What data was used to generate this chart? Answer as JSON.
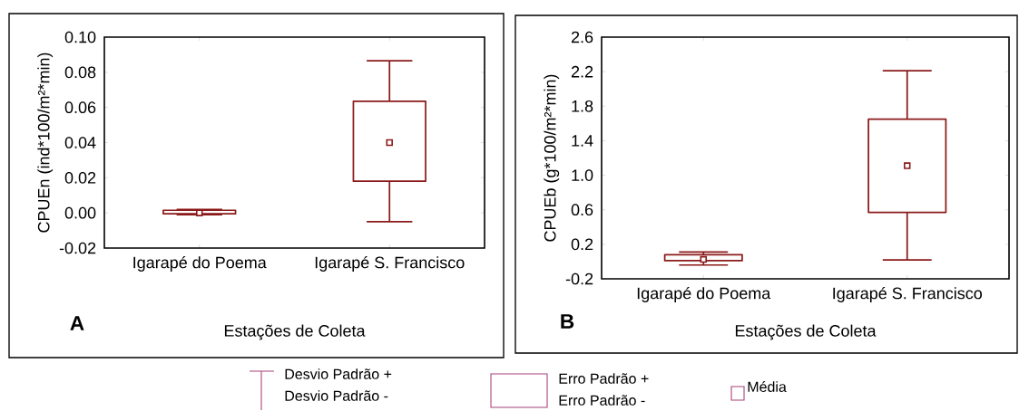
{
  "chart_data": [
    {
      "type": "box",
      "categories": [
        "Igarapé do Poema",
        "Igarapé S. Francisco"
      ],
      "color": "#8b1a1a",
      "boxes": [
        {
          "low": -0.001,
          "q1": -0.0005,
          "mean": 0.0,
          "q3": 0.0015,
          "high": 0.002
        },
        {
          "low": -0.005,
          "q1": 0.018,
          "mean": 0.04,
          "q3": 0.0635,
          "high": 0.0865
        }
      ],
      "ylim": [
        -0.02,
        0.1
      ],
      "yticks": [
        {
          "value": -0.02,
          "label": "-0.02"
        },
        {
          "value": 0,
          "label": "0.00"
        },
        {
          "value": 0.02,
          "label": "0.02"
        },
        {
          "value": 0.04,
          "label": "0.04"
        },
        {
          "value": 0.06,
          "label": "0.06"
        },
        {
          "value": 0.08,
          "label": "0.08"
        },
        {
          "value": 0.1,
          "label": "0.10"
        }
      ],
      "xlabel": "Estações de Coleta",
      "ylabel": "CPUEn (ind*100/m²*min)",
      "annotations": [
        "A"
      ]
    },
    {
      "type": "box",
      "categories": [
        "Igarapé do Poema",
        "Igarapé S. Francisco"
      ],
      "color": "#8b1a1a",
      "boxes": [
        {
          "low": -0.04,
          "q1": 0.01,
          "mean": 0.025,
          "q3": 0.08,
          "high": 0.11
        },
        {
          "low": 0.02,
          "q1": 0.57,
          "mean": 1.11,
          "q3": 1.65,
          "high": 2.21
        }
      ],
      "ylim": [
        -0.2,
        2.6
      ],
      "yticks": [
        {
          "value": -0.2,
          "label": "-0.2"
        },
        {
          "value": 0.2,
          "label": "0.2"
        },
        {
          "value": 0.6,
          "label": "0.6"
        },
        {
          "value": 1.0,
          "label": "1.0"
        },
        {
          "value": 1.4,
          "label": "1.4"
        },
        {
          "value": 1.8,
          "label": "1.8"
        },
        {
          "value": 2.2,
          "label": "2.2"
        },
        {
          "value": 2.6,
          "label": "2.6"
        }
      ],
      "xlabel": "Estações de Coleta",
      "ylabel": "CPUEb (g*100/m²*min)",
      "annotations": [
        "B"
      ]
    },
    {
      "type": "other",
      "color": "#a8407a",
      "annotations": [
        "Desvio Padrão +",
        "Desvio Padrão -",
        "Erro Padrão +",
        "Erro Padrão -",
        "Média"
      ]
    }
  ]
}
